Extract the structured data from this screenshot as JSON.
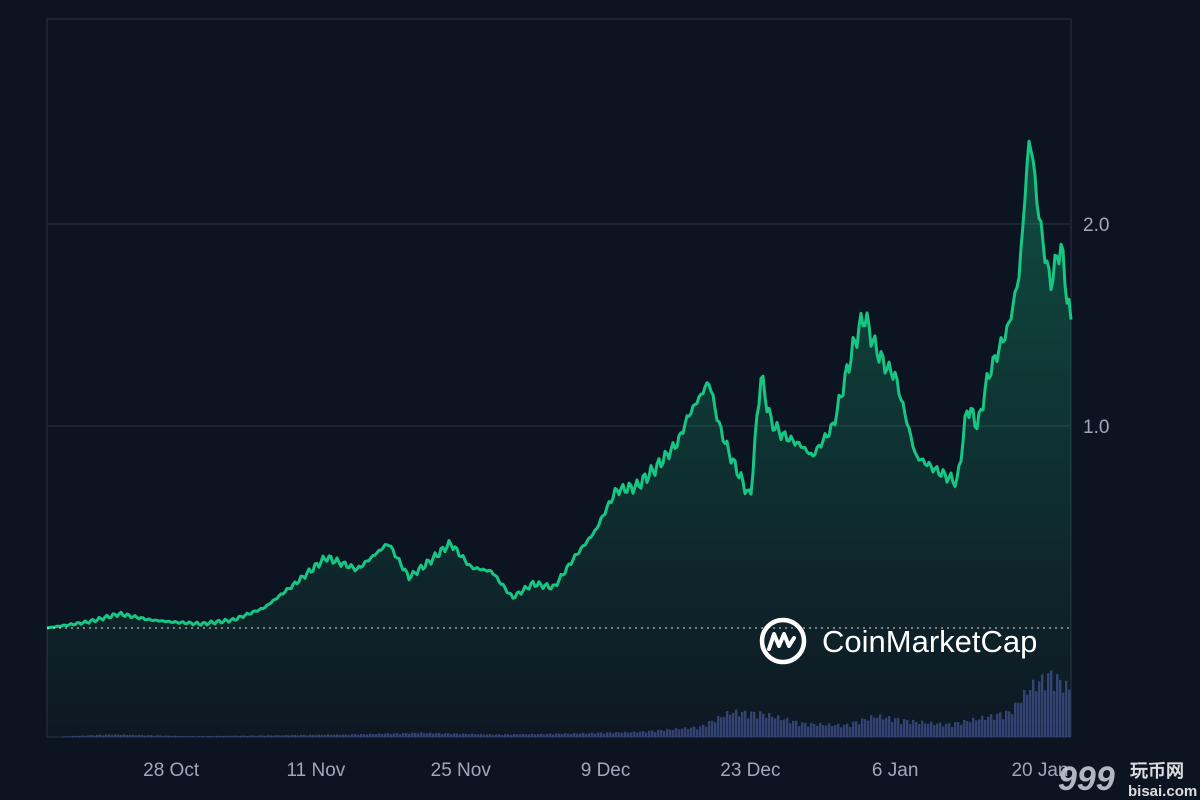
{
  "chart_data": {
    "type": "area",
    "title": "",
    "xlabel": "",
    "ylabel": "",
    "x_tick_labels": [
      "28 Oct",
      "11 Nov",
      "25 Nov",
      "9 Dec",
      "23 Dec",
      "6 Jan",
      "20 Jan"
    ],
    "y_tick_labels": [
      "1.0",
      "2.0"
    ],
    "ylim": [
      0,
      2.5
    ],
    "grid": true,
    "baseline": 0.0,
    "price_color": "#16c784",
    "volume_color": "#3e4a8a",
    "price_series": {
      "x": [
        "2024-10-16",
        "2024-10-20",
        "2024-10-23",
        "2024-10-26",
        "2024-10-28",
        "2024-10-31",
        "2024-11-03",
        "2024-11-06",
        "2024-11-09",
        "2024-11-12",
        "2024-11-15",
        "2024-11-18",
        "2024-11-20",
        "2024-11-22",
        "2024-11-24",
        "2024-11-26",
        "2024-11-28",
        "2024-11-30",
        "2024-12-02",
        "2024-12-04",
        "2024-12-06",
        "2024-12-08",
        "2024-12-10",
        "2024-12-12",
        "2024-12-14",
        "2024-12-16",
        "2024-12-17",
        "2024-12-19",
        "2024-12-20",
        "2024-12-21",
        "2024-12-22",
        "2024-12-23",
        "2024-12-24",
        "2024-12-25",
        "2024-12-26",
        "2024-12-28",
        "2024-12-29",
        "2024-12-31",
        "2025-01-02",
        "2025-01-03",
        "2025-01-04",
        "2025-01-05",
        "2025-01-06",
        "2025-01-07",
        "2025-01-08",
        "2025-01-10",
        "2025-01-12",
        "2025-01-13",
        "2025-01-14",
        "2025-01-15",
        "2025-01-17",
        "2025-01-18",
        "2025-01-19",
        "2025-01-20",
        "2025-01-21",
        "2025-01-22",
        "2025-01-23"
      ],
      "y": [
        0.0,
        0.03,
        0.07,
        0.04,
        0.03,
        0.02,
        0.04,
        0.1,
        0.22,
        0.35,
        0.29,
        0.42,
        0.25,
        0.33,
        0.42,
        0.3,
        0.28,
        0.15,
        0.22,
        0.2,
        0.35,
        0.48,
        0.68,
        0.7,
        0.8,
        0.92,
        1.05,
        1.22,
        1.0,
        0.86,
        0.75,
        0.64,
        1.25,
        1.02,
        0.96,
        0.9,
        0.85,
        1.0,
        1.4,
        1.55,
        1.4,
        1.3,
        1.25,
        1.05,
        0.85,
        0.78,
        0.72,
        1.1,
        1.0,
        1.25,
        1.5,
        1.75,
        2.45,
        2.0,
        1.7,
        1.9,
        1.5
      ]
    },
    "volume_series": {
      "x": [
        "2024-10-16",
        "2024-10-22",
        "2024-10-30",
        "2024-11-07",
        "2024-11-14",
        "2024-11-21",
        "2024-11-28",
        "2024-12-05",
        "2024-12-12",
        "2024-12-18",
        "2024-12-21",
        "2024-12-24",
        "2024-12-28",
        "2025-01-01",
        "2025-01-04",
        "2025-01-08",
        "2025-01-11",
        "2025-01-14",
        "2025-01-17",
        "2025-01-19",
        "2025-01-21",
        "2025-01-23"
      ],
      "y": [
        0.0,
        0.03,
        0.01,
        0.02,
        0.03,
        0.05,
        0.03,
        0.04,
        0.06,
        0.12,
        0.3,
        0.28,
        0.16,
        0.14,
        0.25,
        0.18,
        0.15,
        0.22,
        0.3,
        0.6,
        0.75,
        0.55
      ]
    }
  },
  "watermark": {
    "text": "CoinMarketCap",
    "color": "#ffffff"
  },
  "corner_watermark": {
    "text_top": "玩币网",
    "text_bottom": "bisai.com",
    "digits": "999"
  }
}
